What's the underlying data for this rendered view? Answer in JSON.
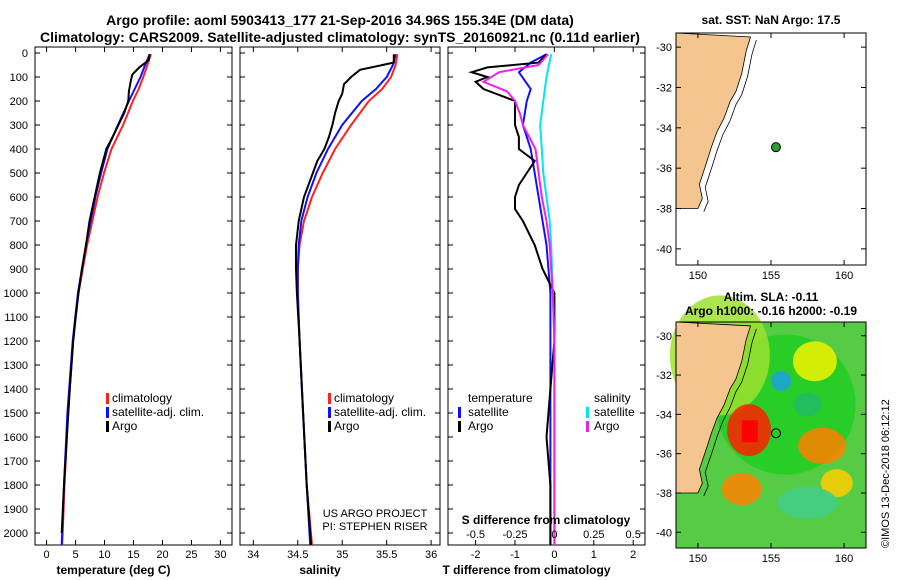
{
  "title_line1": "Argo profile: aoml 5903413_177 21-Sep-2016 34.96S 155.34E (DM data)",
  "title_line2": "Climatology: CARS2009. Satellite-adjusted climatology: synTS_20160921.nc (0.11d earlier)",
  "credit": "©IMOS 13-Dec-2018 06:12:12",
  "colors": {
    "climatology": "#ff2020",
    "satellite": "#1010ff",
    "argo": "#000000",
    "salinity_sat": "#00e5ee",
    "salinity_argo": "#ee20ee",
    "land": "#f5c590",
    "sst_marker": "#2ca02c"
  },
  "y_axis": {
    "ticks": [
      "0",
      "100",
      "200",
      "300",
      "400",
      "500",
      "600",
      "700",
      "800",
      "900",
      "1000",
      "1100",
      "1200",
      "1300",
      "1400",
      "1500",
      "1600",
      "1700",
      "1800",
      "1900",
      "2000"
    ],
    "ylim": [
      0,
      2050
    ],
    "inverted": true
  },
  "chart_data": [
    {
      "type": "line",
      "panel": "temperature",
      "xlabel": "temperature (deg C)",
      "xticks": [
        "0",
        "5",
        "10",
        "15",
        "20",
        "25",
        "30"
      ],
      "xlim": [
        -2,
        32
      ],
      "legend": [
        "climatology",
        "satellite-adj. clim.",
        "Argo"
      ],
      "legend_position": "lower-center",
      "series": [
        {
          "name": "climatology",
          "depth": [
            5,
            50,
            100,
            150,
            200,
            300,
            400,
            500,
            600,
            800,
            1000,
            1200,
            1500,
            1800,
            2050
          ],
          "values": [
            18.0,
            17.4,
            16.7,
            15.9,
            14.9,
            13.2,
            11.2,
            9.9,
            8.8,
            7.0,
            5.5,
            4.6,
            3.7,
            3.1,
            2.7
          ]
        },
        {
          "name": "satellite-adj. clim.",
          "depth": [
            5,
            50,
            100,
            150,
            200,
            300,
            400,
            500,
            600,
            800,
            1000,
            1200,
            1500,
            1800,
            2050
          ],
          "values": [
            17.8,
            17.0,
            16.2,
            15.2,
            14.2,
            12.3,
            10.5,
            9.4,
            8.4,
            6.8,
            5.4,
            4.5,
            3.6,
            3.0,
            2.6
          ]
        },
        {
          "name": "Argo",
          "depth": [
            5,
            30,
            60,
            90,
            120,
            160,
            200,
            250,
            300,
            350,
            400,
            500,
            600,
            700,
            800,
            900,
            1000,
            1100,
            1200,
            1400,
            1600,
            1800,
            2000
          ],
          "values": [
            17.8,
            17.6,
            16.0,
            14.8,
            14.5,
            14.2,
            14.1,
            13.4,
            12.4,
            11.4,
            10.3,
            9.2,
            8.3,
            7.4,
            6.8,
            6.1,
            5.5,
            5.0,
            4.6,
            4.0,
            3.5,
            3.0,
            2.6
          ]
        }
      ]
    },
    {
      "type": "line",
      "panel": "salinity",
      "xlabel": "salinity",
      "xticks": [
        "34",
        "34.5",
        "35",
        "35.5",
        "36"
      ],
      "xlim": [
        33.85,
        36.1
      ],
      "legend": [
        "climatology",
        "satellite-adj. clim.",
        "Argo"
      ],
      "legend_position": "lower-center",
      "annotation": [
        "US ARGO PROJECT",
        "PI: STEPHEN RISER"
      ],
      "series": [
        {
          "name": "climatology",
          "depth": [
            5,
            50,
            100,
            150,
            200,
            300,
            400,
            500,
            600,
            700,
            800,
            900,
            1000,
            1200,
            1500,
            1800,
            2050
          ],
          "values": [
            35.62,
            35.6,
            35.55,
            35.45,
            35.3,
            35.1,
            34.92,
            34.78,
            34.66,
            34.57,
            34.52,
            34.5,
            34.5,
            34.52,
            34.56,
            34.6,
            34.66
          ]
        },
        {
          "name": "satellite-adj. clim.",
          "depth": [
            5,
            50,
            100,
            150,
            200,
            300,
            400,
            500,
            600,
            700,
            800,
            900,
            1000,
            1200,
            1500,
            1800,
            2050
          ],
          "values": [
            35.6,
            35.57,
            35.5,
            35.38,
            35.22,
            35.0,
            34.84,
            34.71,
            34.61,
            34.54,
            34.51,
            34.5,
            34.5,
            34.52,
            34.56,
            34.6,
            34.64
          ]
        },
        {
          "name": "Argo",
          "depth": [
            5,
            40,
            70,
            100,
            130,
            170,
            200,
            250,
            300,
            350,
            400,
            450,
            500,
            600,
            700,
            800,
            900,
            1000,
            1200,
            1500,
            1800,
            2050
          ],
          "values": [
            35.58,
            35.58,
            35.2,
            35.1,
            35.02,
            35.0,
            34.96,
            34.92,
            34.89,
            34.85,
            34.8,
            34.72,
            34.67,
            34.57,
            34.51,
            34.48,
            34.48,
            34.49,
            34.52,
            34.56,
            34.6,
            34.65
          ]
        }
      ]
    },
    {
      "type": "line",
      "panel": "difference",
      "xlabel": "T difference from climatology",
      "x2label": "S difference from climatology",
      "xticks": [
        "-2",
        "-1",
        "0",
        "1",
        "2"
      ],
      "x2ticks": [
        "-0.5",
        "-0.25",
        "0",
        "0.25",
        "0.5"
      ],
      "xlim": [
        -2.7,
        2.3
      ],
      "legend_temperature": [
        "temperature",
        "satellite",
        "Argo"
      ],
      "legend_salinity": [
        "salinity",
        "satellite",
        "Argo"
      ],
      "legend_position": "lower",
      "series": [
        {
          "name": "temperature satellite",
          "depth": [
            5,
            40,
            80,
            150,
            200,
            300,
            400,
            500,
            600,
            800,
            1000,
            1200,
            1500,
            1800,
            2050
          ],
          "values": [
            -0.2,
            -0.6,
            -0.9,
            -0.6,
            -0.7,
            -0.8,
            -0.6,
            -0.5,
            -0.4,
            -0.2,
            -0.1,
            -0.1,
            -0.1,
            -0.1,
            -0.1
          ]
        },
        {
          "name": "temperature Argo",
          "depth": [
            5,
            40,
            60,
            80,
            100,
            120,
            150,
            200,
            250,
            300,
            350,
            400,
            450,
            500,
            550,
            600,
            650,
            700,
            800,
            900,
            1000,
            1100,
            1200,
            1400,
            1600,
            1800,
            2050
          ],
          "values": [
            -0.2,
            -0.4,
            -1.7,
            -2.1,
            -1.7,
            -2.0,
            -1.8,
            -1.0,
            -1.0,
            -1.0,
            -0.9,
            -0.9,
            -0.5,
            -0.7,
            -0.9,
            -1.0,
            -1.0,
            -0.8,
            -0.5,
            -0.3,
            0.0,
            0.0,
            0.0,
            -0.1,
            -0.2,
            -0.1,
            -0.1
          ]
        },
        {
          "name": "salinity satellite",
          "depth": [
            5,
            100,
            200,
            300,
            400,
            500,
            600,
            700,
            800,
            1000,
            1200,
            1500,
            1800,
            2050
          ],
          "values": [
            -0.02,
            -0.05,
            -0.07,
            -0.09,
            -0.08,
            -0.07,
            -0.05,
            -0.03,
            -0.02,
            -0.01,
            0.0,
            0.0,
            0.0,
            0.0
          ]
        },
        {
          "name": "salinity Argo",
          "depth": [
            5,
            50,
            80,
            120,
            160,
            200,
            250,
            300,
            400,
            500,
            600,
            700,
            800,
            900,
            1000,
            1200,
            1500,
            1800,
            2050
          ],
          "values": [
            -0.04,
            -0.1,
            -0.35,
            -0.45,
            -0.3,
            -0.25,
            -0.22,
            -0.2,
            -0.12,
            -0.1,
            -0.08,
            -0.05,
            -0.03,
            -0.02,
            -0.01,
            0.0,
            0.0,
            0.0,
            0.0
          ]
        }
      ]
    },
    {
      "type": "map",
      "panel": "sst_map",
      "title": "sat. SST: NaN Argo: 17.5",
      "xticks": [
        "150",
        "155",
        "160"
      ],
      "yticks": [
        "-30",
        "-32",
        "-34",
        "-36",
        "-38",
        "-40"
      ],
      "marker": {
        "lon": 155.34,
        "lat": -34.96
      }
    },
    {
      "type": "map",
      "panel": "sla_map",
      "title_line1": "Altim. SLA: -0.11",
      "title_line2": "Argo h1000: -0.16 h2000: -0.19",
      "xticks": [
        "150",
        "155",
        "160"
      ],
      "yticks": [
        "-30",
        "-32",
        "-34",
        "-36",
        "-38",
        "-40"
      ],
      "marker": {
        "lon": 155.34,
        "lat": -34.96
      }
    }
  ]
}
